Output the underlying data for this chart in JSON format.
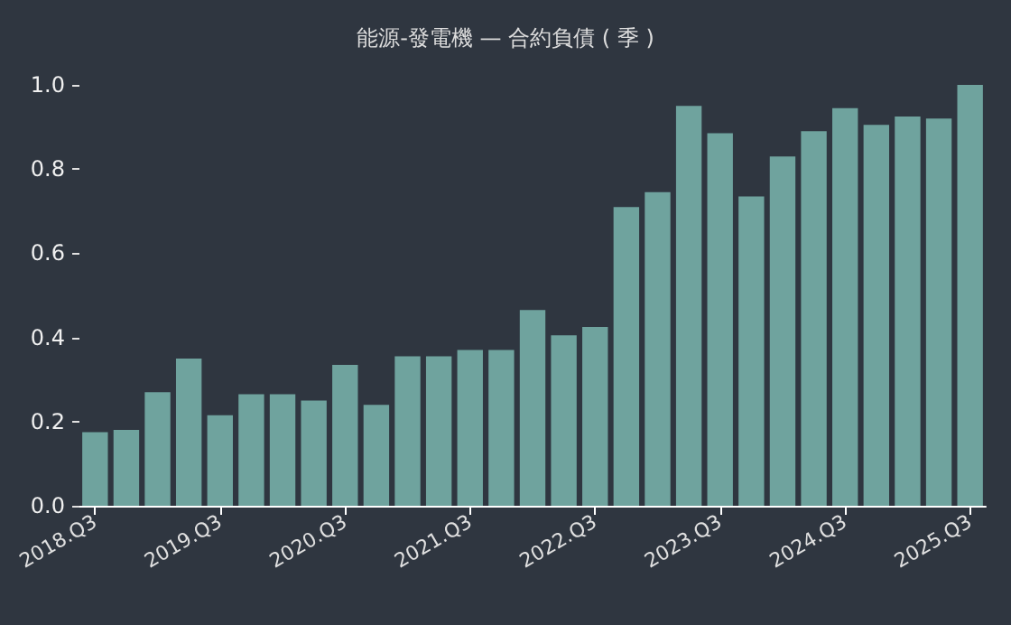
{
  "chart_data": {
    "type": "bar",
    "title": "能源-發電機 — 合約負債 ( 季 )",
    "categories": [
      "2018.Q3",
      null,
      null,
      null,
      "2019.Q3",
      null,
      null,
      null,
      "2020.Q3",
      null,
      null,
      null,
      "2021.Q3",
      null,
      null,
      null,
      "2022.Q3",
      null,
      null,
      null,
      "2023.Q3",
      null,
      null,
      null,
      "2024.Q3",
      null,
      null,
      null,
      "2025.Q3"
    ],
    "values": [
      0.175,
      0.18,
      0.27,
      0.35,
      0.215,
      0.265,
      0.265,
      0.25,
      0.335,
      0.24,
      0.355,
      0.355,
      0.37,
      0.37,
      0.465,
      0.405,
      0.425,
      0.71,
      0.745,
      0.95,
      0.885,
      0.735,
      0.83,
      0.89,
      0.945,
      0.905,
      0.925,
      0.92,
      1.0
    ],
    "color": "#6fa39e",
    "ylim": [
      0,
      1.0
    ],
    "yticks": [
      {
        "value": 0,
        "label": "0.0"
      },
      0.2,
      0.4,
      0.6,
      0.8,
      {
        "value": 1,
        "label": "1.0"
      }
    ],
    "grid": false
  }
}
